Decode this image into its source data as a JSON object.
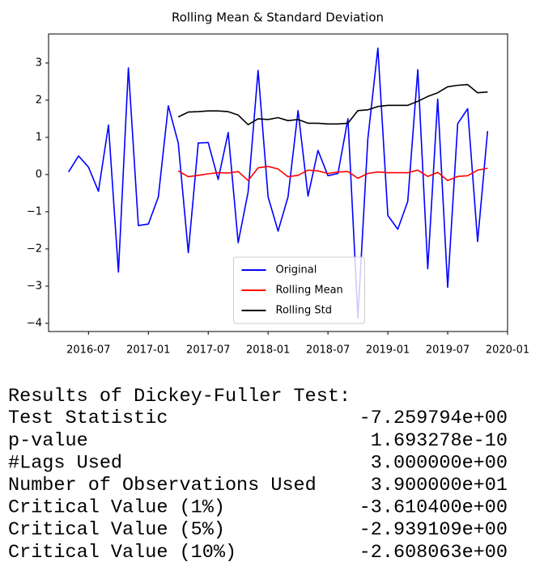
{
  "chart_data": {
    "type": "line",
    "title": "Rolling Mean & Standard Deviation",
    "x": [
      "2016-05",
      "2016-06",
      "2016-07",
      "2016-08",
      "2016-09",
      "2016-10",
      "2016-11",
      "2016-12",
      "2017-01",
      "2017-02",
      "2017-03",
      "2017-04",
      "2017-05",
      "2017-06",
      "2017-07",
      "2017-08",
      "2017-09",
      "2017-10",
      "2017-11",
      "2017-12",
      "2018-01",
      "2018-02",
      "2018-03",
      "2018-04",
      "2018-05",
      "2018-06",
      "2018-07",
      "2018-08",
      "2018-09",
      "2018-10",
      "2018-11",
      "2018-12",
      "2019-01",
      "2019-02",
      "2019-03",
      "2019-04",
      "2019-05",
      "2019-06",
      "2019-07",
      "2019-08",
      "2019-09",
      "2019-10",
      "2019-11"
    ],
    "series": [
      {
        "name": "Original",
        "color": "#0000ff",
        "values": [
          0.07,
          0.5,
          0.2,
          -0.45,
          1.33,
          -2.62,
          2.87,
          -1.37,
          -1.33,
          -0.6,
          1.85,
          0.85,
          -2.1,
          0.85,
          0.86,
          -0.13,
          1.13,
          -1.83,
          -0.47,
          2.8,
          -0.6,
          -1.52,
          -0.6,
          1.72,
          -0.58,
          0.65,
          -0.03,
          0.03,
          1.5,
          -3.85,
          0.96,
          3.4,
          -1.1,
          -1.47,
          -0.72,
          2.82,
          -2.53,
          2.03,
          -3.03,
          1.37,
          1.77,
          -1.8,
          1.17
        ]
      },
      {
        "name": "Rolling Mean",
        "color": "#ff0000",
        "values": [
          null,
          null,
          null,
          null,
          null,
          null,
          null,
          null,
          null,
          null,
          null,
          0.1,
          -0.06,
          -0.02,
          0.02,
          0.05,
          0.04,
          0.08,
          -0.16,
          0.18,
          0.22,
          0.15,
          -0.06,
          -0.02,
          0.12,
          0.1,
          0.03,
          0.07,
          0.08,
          -0.1,
          0.03,
          0.07,
          0.05,
          0.05,
          0.05,
          0.12,
          -0.05,
          0.06,
          -0.16,
          -0.05,
          -0.03,
          0.12,
          0.17
        ]
      },
      {
        "name": "Rolling Std",
        "color": "#000000",
        "values": [
          null,
          null,
          null,
          null,
          null,
          null,
          null,
          null,
          null,
          null,
          null,
          1.55,
          1.68,
          1.69,
          1.71,
          1.71,
          1.69,
          1.6,
          1.34,
          1.5,
          1.48,
          1.53,
          1.45,
          1.48,
          1.38,
          1.38,
          1.36,
          1.36,
          1.38,
          1.72,
          1.74,
          1.83,
          1.86,
          1.86,
          1.86,
          1.97,
          2.1,
          2.2,
          2.36,
          2.4,
          2.42,
          2.2,
          2.22
        ]
      }
    ],
    "xlim": [
      "2016-03",
      "2020-01"
    ],
    "xticks": [
      "2016-07",
      "2017-01",
      "2017-07",
      "2018-01",
      "2018-07",
      "2019-01",
      "2019-07",
      "2020-01"
    ],
    "ylim": [
      -4.22,
      3.78
    ],
    "yticks": [
      {
        "value": -4,
        "label": "−4"
      },
      {
        "value": -3,
        "label": "−3"
      },
      {
        "value": -2,
        "label": "−2"
      },
      {
        "value": -1,
        "label": "−1"
      },
      0,
      1,
      2,
      3
    ],
    "legend": "lower center"
  },
  "output": {
    "title": "Results of Dickey-Fuller Test:",
    "rows": [
      [
        "Test Statistic",
        "-7.259794e+00"
      ],
      [
        "p-value",
        "1.693278e-10"
      ],
      [
        "#Lags Used",
        "3.000000e+00"
      ],
      [
        "Number of Observations Used",
        "3.900000e+01"
      ],
      [
        "Critical Value (1%)",
        "-3.610400e+00"
      ],
      [
        "Critical Value (5%)",
        "-2.939109e+00"
      ],
      [
        "Critical Value (10%)",
        "-2.608063e+00"
      ]
    ]
  }
}
